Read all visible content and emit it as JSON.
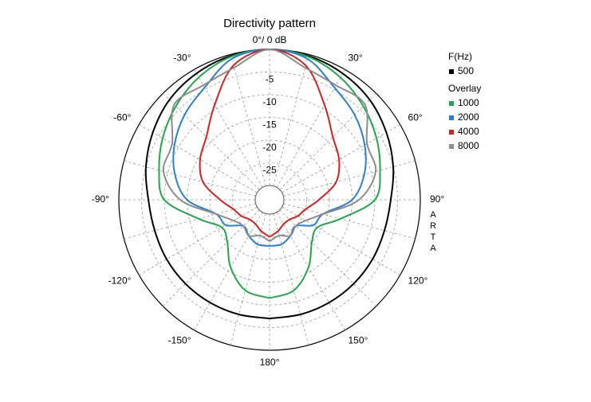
{
  "chart_data": {
    "type": "polar",
    "title": "Directivity pattern",
    "x": [
      -180,
      -165,
      -150,
      -135,
      -120,
      -105,
      -90,
      -75,
      -60,
      -45,
      -30,
      -15,
      0,
      15,
      30,
      45,
      60,
      75,
      90,
      105,
      120,
      135,
      150,
      165,
      180
    ],
    "rlim": [
      -30,
      0
    ],
    "rticks": [
      -5,
      -10,
      -15,
      -20,
      -25
    ],
    "angle_ticks": [
      {
        "value": 0,
        "label": "0°/ 0 dB"
      },
      {
        "value": 30,
        "label": "30°"
      },
      {
        "value": 60,
        "label": "60°"
      },
      {
        "value": 90,
        "label": "90°"
      },
      {
        "value": 120,
        "label": "120°"
      },
      {
        "value": 150,
        "label": "150°"
      },
      {
        "value": 180,
        "label": "180°"
      },
      {
        "value": -150,
        "label": "-150°"
      },
      {
        "value": -120,
        "label": "-120°"
      },
      {
        "value": -90,
        "label": "-90°"
      },
      {
        "value": -60,
        "label": "-60°"
      },
      {
        "value": -30,
        "label": "-30°"
      }
    ],
    "legend_title": "F(Hz)",
    "overlay_title": "Overlay",
    "watermark": "ARTA",
    "series": [
      {
        "name": "500",
        "color": "#000000",
        "values": [
          -7,
          -7,
          -7,
          -7,
          -7,
          -7,
          -6.5,
          -5,
          -3.5,
          -2,
          -1,
          -0.3,
          0,
          -0.3,
          -1,
          -2,
          -3.5,
          -5,
          -6.5,
          -7,
          -7,
          -7,
          -7,
          -7,
          -7
        ]
      },
      {
        "name": "1000",
        "color": "#1fa84a",
        "values": [
          -11.5,
          -12.5,
          -16,
          -20,
          -21,
          -17,
          -10,
          -8,
          -6,
          -4,
          -2,
          -0.5,
          0,
          -0.5,
          -2,
          -4,
          -6,
          -8,
          -10,
          -17,
          -21,
          -20,
          -16,
          -12.5,
          -11.5
        ]
      },
      {
        "name": "2000",
        "color": "#2a7fd4",
        "values": [
          -23,
          -23,
          -24,
          -25,
          -22,
          -21,
          -15,
          -11.6,
          -9,
          -6.7,
          -4.6,
          -1,
          0,
          -1,
          -4.6,
          -6.7,
          -9,
          -11.6,
          -15,
          -21,
          -22,
          -25,
          -24,
          -23,
          -23
        ]
      },
      {
        "name": "4000",
        "color": "#d42020",
        "values": [
          -25,
          -26,
          -27,
          -27,
          -26,
          -25,
          -22.3,
          -18,
          -15.5,
          -13.5,
          -9,
          -2.5,
          0,
          -2.5,
          -9,
          -13.5,
          -15.5,
          -18,
          -22.3,
          -25,
          -26,
          -27,
          -27,
          -26,
          -25
        ]
      },
      {
        "name": "8000",
        "color": "#8c8c8c",
        "values": [
          -24,
          -25,
          -24,
          -25,
          -24,
          -21,
          -13.5,
          -9,
          -8.4,
          -3.5,
          -4,
          -3,
          0,
          -3,
          -4,
          -3.5,
          -8.4,
          -9,
          -13.5,
          -21,
          -24,
          -25,
          -24,
          -25,
          -24
        ]
      }
    ]
  }
}
